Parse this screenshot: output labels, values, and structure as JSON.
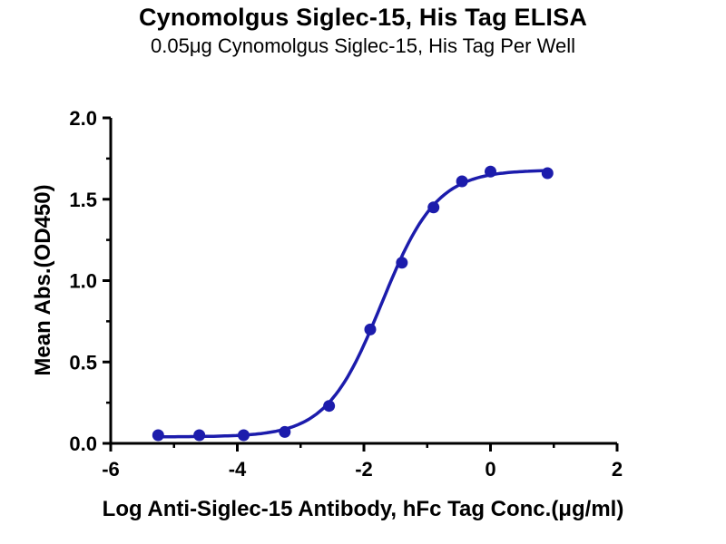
{
  "chart_data": {
    "type": "scatter",
    "title": "Cynomolgus Siglec-15, His Tag ELISA",
    "subtitle": "0.05μg Cynomolgus Siglec-15, His Tag Per Well",
    "xlabel": "Log Anti-Siglec-15 Antibody, hFc Tag Conc.(μg/ml)",
    "ylabel": "Mean Abs.(OD450)",
    "xlim": [
      -6,
      2
    ],
    "ylim": [
      0,
      2
    ],
    "x_ticks": [
      -6,
      -4,
      -2,
      0,
      2
    ],
    "x_tick_labels": [
      "-6",
      "-4",
      "-2",
      "0",
      "2"
    ],
    "x_minor_ticks": [
      -5,
      -3,
      -1,
      1
    ],
    "y_ticks": [
      0,
      0.5,
      1,
      1.5,
      2
    ],
    "y_tick_labels": [
      "0.0",
      "0.5",
      "1.0",
      "1.5",
      "2.0"
    ],
    "y_minor_ticks": [
      0.25,
      0.75,
      1.25,
      1.75
    ],
    "points": {
      "x": [
        -5.25,
        -4.6,
        -3.9,
        -3.25,
        -2.55,
        -1.9,
        -1.4,
        -0.9,
        -0.45,
        0.0,
        0.9
      ],
      "y": [
        0.05,
        0.05,
        0.05,
        0.07,
        0.23,
        0.7,
        1.11,
        1.45,
        1.61,
        1.67,
        1.66
      ]
    },
    "fit_curve_4pl": {
      "bottom": 0.04,
      "top": 1.68,
      "log_ec50": -1.72,
      "hill": 1.0
    },
    "curve_color": "#1c1cac",
    "point_color": "#1c1cac",
    "point_radius": 6.5,
    "axis_color": "#000000",
    "grid": false,
    "legend": false
  }
}
